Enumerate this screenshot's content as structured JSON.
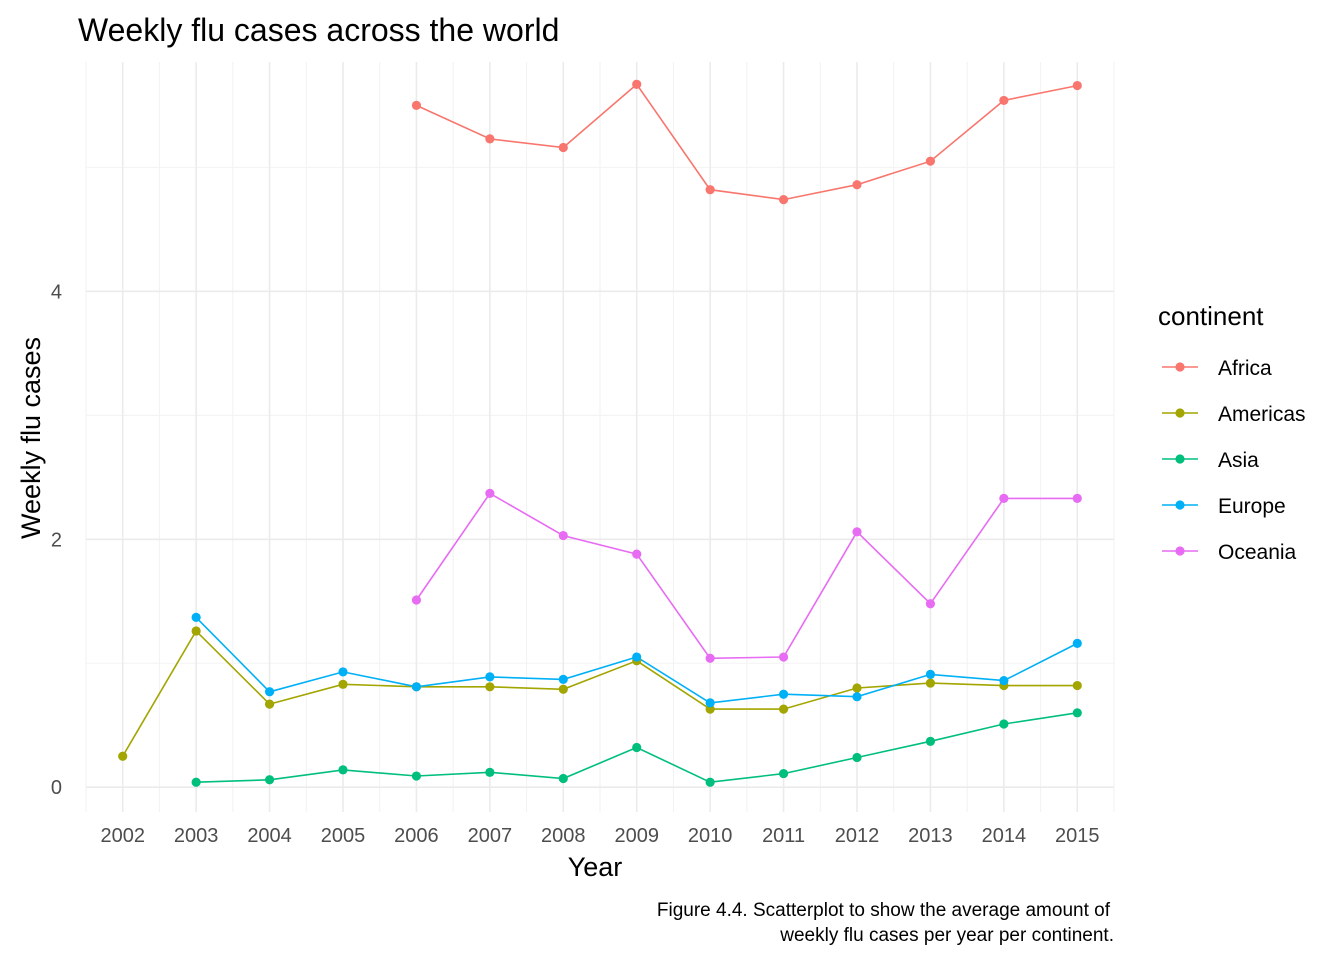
{
  "chart_data": {
    "type": "line",
    "title": "Weekly flu cases across the world",
    "xlabel": "Year",
    "ylabel": "Weekly flu cases",
    "x": [
      2002,
      2003,
      2004,
      2005,
      2006,
      2007,
      2008,
      2009,
      2010,
      2011,
      2012,
      2013,
      2014,
      2015
    ],
    "x_tick_labels": [
      "2002",
      "2003",
      "2004",
      "2005",
      "2006",
      "2007",
      "2008",
      "2009",
      "2010",
      "2011",
      "2012",
      "2013",
      "2014",
      "2015"
    ],
    "y_ticks": [
      0,
      2,
      4
    ],
    "y_tick_labels": [
      "0",
      "2",
      "4"
    ],
    "xlim": [
      2001.5,
      2015.5
    ],
    "ylim": [
      -0.2,
      5.85
    ],
    "grid": true,
    "legend_title": "continent",
    "legend_position": "right",
    "series": [
      {
        "name": "Africa",
        "color": "#F8766D",
        "points": [
          [
            2006,
            5.5
          ],
          [
            2007,
            5.23
          ],
          [
            2008,
            5.16
          ],
          [
            2009,
            5.67
          ],
          [
            2010,
            4.82
          ],
          [
            2011,
            4.74
          ],
          [
            2012,
            4.86
          ],
          [
            2013,
            5.05
          ],
          [
            2014,
            5.54
          ],
          [
            2015,
            5.66
          ]
        ]
      },
      {
        "name": "Americas",
        "color": "#A3A500",
        "points": [
          [
            2002,
            0.25
          ],
          [
            2003,
            1.26
          ],
          [
            2004,
            0.67
          ],
          [
            2005,
            0.83
          ],
          [
            2006,
            0.81
          ],
          [
            2007,
            0.81
          ],
          [
            2008,
            0.79
          ],
          [
            2009,
            1.02
          ],
          [
            2010,
            0.63
          ],
          [
            2011,
            0.63
          ],
          [
            2012,
            0.8
          ],
          [
            2013,
            0.84
          ],
          [
            2014,
            0.82
          ],
          [
            2015,
            0.82
          ]
        ]
      },
      {
        "name": "Asia",
        "color": "#00BF7D",
        "points": [
          [
            2003,
            0.04
          ],
          [
            2004,
            0.06
          ],
          [
            2005,
            0.14
          ],
          [
            2006,
            0.09
          ],
          [
            2007,
            0.12
          ],
          [
            2008,
            0.07
          ],
          [
            2009,
            0.32
          ],
          [
            2010,
            0.04
          ],
          [
            2011,
            0.11
          ],
          [
            2012,
            0.24
          ],
          [
            2013,
            0.37
          ],
          [
            2014,
            0.51
          ],
          [
            2015,
            0.6
          ]
        ]
      },
      {
        "name": "Europe",
        "color": "#00B0F6",
        "points": [
          [
            2003,
            1.37
          ],
          [
            2004,
            0.77
          ],
          [
            2005,
            0.93
          ],
          [
            2006,
            0.81
          ],
          [
            2007,
            0.89
          ],
          [
            2008,
            0.87
          ],
          [
            2009,
            1.05
          ],
          [
            2010,
            0.68
          ],
          [
            2011,
            0.75
          ],
          [
            2012,
            0.73
          ],
          [
            2013,
            0.91
          ],
          [
            2014,
            0.86
          ],
          [
            2015,
            1.16
          ]
        ]
      },
      {
        "name": "Oceania",
        "color": "#E76BF3",
        "points": [
          [
            2006,
            1.51
          ],
          [
            2007,
            2.37
          ],
          [
            2008,
            2.03
          ],
          [
            2009,
            1.88
          ],
          [
            2010,
            1.04
          ],
          [
            2011,
            1.05
          ],
          [
            2012,
            2.06
          ],
          [
            2013,
            1.48
          ],
          [
            2014,
            2.33
          ],
          [
            2015,
            2.33
          ]
        ]
      }
    ],
    "caption_lines": [
      "Figure 4.4. Scatterplot to show the average amount of",
      "weekly flu cases per year per continent."
    ]
  }
}
